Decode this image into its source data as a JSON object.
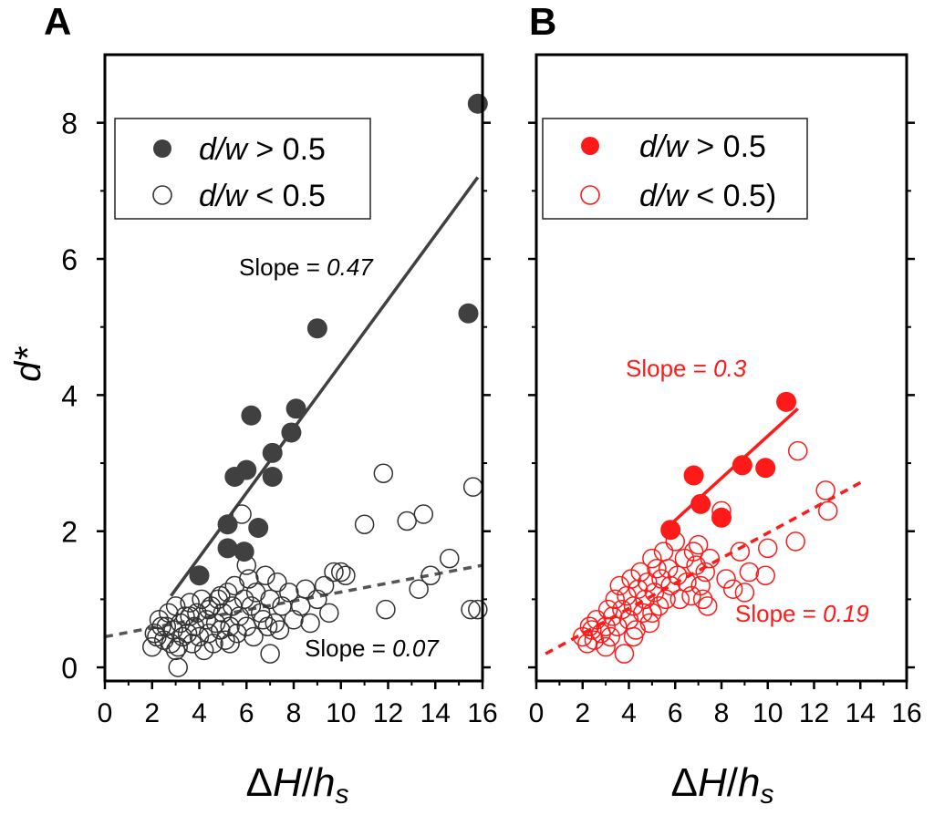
{
  "chart_data": [
    {
      "type": "scatter",
      "panel_label": "A",
      "xlabel": "ΔH/h_s",
      "ylabel": "d*",
      "xlim": [
        0,
        16
      ],
      "ylim": [
        -0.2,
        9.0
      ],
      "x_ticks": [
        0,
        2,
        4,
        6,
        8,
        10,
        12,
        14,
        16
      ],
      "y_ticks": [
        0,
        2,
        4,
        6,
        8
      ],
      "grid": false,
      "legend_position": "top-left",
      "colors": {
        "filled": "#404040",
        "open": "#333333"
      },
      "legend": [
        {
          "symbol": "filled",
          "italic": "d/w",
          "rest": " > 0.5"
        },
        {
          "symbol": "open",
          "italic": "d/w",
          "rest": " < 0.5"
        }
      ],
      "series": [
        {
          "name": "d/w > 0.5",
          "marker": "filled",
          "points": [
            [
              4.0,
              1.35
            ],
            [
              5.2,
              1.75
            ],
            [
              5.2,
              2.1
            ],
            [
              5.9,
              1.7
            ],
            [
              6.5,
              2.05
            ],
            [
              5.5,
              2.8
            ],
            [
              6.0,
              2.9
            ],
            [
              7.1,
              2.8
            ],
            [
              7.1,
              3.15
            ],
            [
              6.2,
              3.7
            ],
            [
              7.9,
              3.45
            ],
            [
              8.1,
              3.8
            ],
            [
              9.0,
              4.98
            ],
            [
              15.4,
              5.2
            ],
            [
              15.8,
              8.28
            ]
          ]
        },
        {
          "name": "d/w < 0.5",
          "marker": "open",
          "points": [
            [
              2.0,
              0.3
            ],
            [
              2.1,
              0.5
            ],
            [
              2.3,
              0.7
            ],
            [
              2.5,
              0.4
            ],
            [
              2.6,
              0.6
            ],
            [
              2.7,
              0.8
            ],
            [
              2.8,
              0.35
            ],
            [
              2.9,
              0.55
            ],
            [
              3.0,
              0.9
            ],
            [
              3.1,
              0.3
            ],
            [
              3.2,
              0.65
            ],
            [
              3.3,
              0.45
            ],
            [
              3.4,
              0.75
            ],
            [
              3.5,
              0.5
            ],
            [
              3.6,
              0.95
            ],
            [
              3.7,
              0.35
            ],
            [
              3.8,
              0.6
            ],
            [
              3.9,
              0.8
            ],
            [
              4.0,
              0.45
            ],
            [
              4.1,
              1.0
            ],
            [
              4.2,
              0.25
            ],
            [
              4.3,
              0.7
            ],
            [
              4.4,
              0.5
            ],
            [
              4.5,
              0.9
            ],
            [
              4.6,
              0.35
            ],
            [
              4.7,
              0.65
            ],
            [
              4.8,
              1.0
            ],
            [
              4.9,
              0.55
            ],
            [
              5.0,
              0.8
            ],
            [
              5.1,
              0.4
            ],
            [
              5.2,
              1.1
            ],
            [
              5.3,
              0.6
            ],
            [
              5.4,
              0.9
            ],
            [
              5.5,
              1.2
            ],
            [
              5.6,
              0.5
            ],
            [
              5.7,
              0.75
            ],
            [
              5.8,
              2.25
            ],
            [
              5.9,
              1.0
            ],
            [
              6.0,
              0.6
            ],
            [
              6.1,
              1.3
            ],
            [
              6.2,
              0.9
            ],
            [
              6.3,
              0.45
            ],
            [
              6.4,
              1.1
            ],
            [
              6.6,
              0.8
            ],
            [
              6.8,
              1.35
            ],
            [
              6.9,
              0.6
            ],
            [
              7.0,
              0.2
            ],
            [
              7.0,
              1.0
            ],
            [
              7.2,
              0.65
            ],
            [
              7.3,
              1.25
            ],
            [
              7.5,
              0.9
            ],
            [
              7.8,
              1.1
            ],
            [
              8.0,
              0.7
            ],
            [
              8.3,
              0.9
            ],
            [
              8.5,
              1.15
            ],
            [
              8.7,
              0.65
            ],
            [
              9.0,
              1.0
            ],
            [
              9.3,
              1.2
            ],
            [
              9.5,
              0.8
            ],
            [
              9.7,
              1.4
            ],
            [
              10.0,
              1.4
            ],
            [
              10.2,
              1.35
            ],
            [
              11.0,
              2.1
            ],
            [
              11.8,
              2.85
            ],
            [
              11.9,
              0.85
            ],
            [
              12.8,
              2.15
            ],
            [
              13.3,
              1.15
            ],
            [
              13.5,
              2.25
            ],
            [
              13.8,
              1.35
            ],
            [
              14.6,
              1.6
            ],
            [
              15.5,
              0.85
            ],
            [
              15.8,
              0.85
            ],
            [
              15.6,
              2.65
            ],
            [
              2.2,
              0.45
            ],
            [
              2.4,
              0.6
            ],
            [
              3.0,
              0.25
            ],
            [
              3.1,
              0.0
            ],
            [
              3.6,
              0.75
            ],
            [
              4.4,
              0.85
            ],
            [
              4.9,
              1.05
            ],
            [
              5.3,
              0.35
            ],
            [
              6.0,
              1.5
            ],
            [
              6.7,
              0.7
            ],
            [
              7.4,
              0.55
            ]
          ]
        }
      ],
      "fits": [
        {
          "label": "Slope = ",
          "value": "0.47",
          "style": "solid",
          "x": [
            2.8,
            15.8
          ],
          "y": [
            1.05,
            7.2
          ]
        },
        {
          "label": "Slope = ",
          "value": "0.07",
          "style": "dashed",
          "x": [
            0,
            16
          ],
          "y": [
            0.45,
            1.5
          ]
        }
      ]
    },
    {
      "type": "scatter",
      "panel_label": "B",
      "xlabel": "ΔH/h_s",
      "ylabel": "",
      "xlim": [
        0,
        16
      ],
      "ylim": [
        -0.2,
        9.0
      ],
      "x_ticks": [
        0,
        2,
        4,
        6,
        8,
        10,
        12,
        14,
        16
      ],
      "y_ticks": [
        0,
        2,
        4,
        6,
        8
      ],
      "grid": false,
      "legend_position": "top-left",
      "colors": {
        "filled": "#ff1a1a",
        "open": "#ff1a1a"
      },
      "legend": [
        {
          "symbol": "filled",
          "italic": "d/w",
          "rest": " > 0.5"
        },
        {
          "symbol": "open",
          "italic": "d/w",
          "rest": " < 0.5)"
        }
      ],
      "series": [
        {
          "name": "d/w > 0.5",
          "marker": "filled",
          "points": [
            [
              5.8,
              2.02
            ],
            [
              6.8,
              2.82
            ],
            [
              7.1,
              2.4
            ],
            [
              8.0,
              2.2
            ],
            [
              8.9,
              2.97
            ],
            [
              9.9,
              2.93
            ],
            [
              10.8,
              3.9
            ]
          ]
        },
        {
          "name": "d/w < 0.5",
          "marker": "open",
          "points": [
            [
              2.0,
              0.45
            ],
            [
              2.2,
              0.35
            ],
            [
              2.4,
              0.55
            ],
            [
              2.5,
              0.4
            ],
            [
              2.6,
              0.7
            ],
            [
              2.8,
              0.5
            ],
            [
              3.0,
              0.6
            ],
            [
              3.1,
              0.85
            ],
            [
              3.2,
              0.45
            ],
            [
              3.3,
              0.75
            ],
            [
              3.4,
              1.0
            ],
            [
              3.5,
              0.6
            ],
            [
              3.6,
              1.2
            ],
            [
              3.7,
              0.85
            ],
            [
              3.8,
              0.2
            ],
            [
              3.9,
              1.05
            ],
            [
              4.0,
              0.7
            ],
            [
              4.1,
              1.3
            ],
            [
              4.2,
              0.9
            ],
            [
              4.3,
              0.55
            ],
            [
              4.4,
              1.15
            ],
            [
              4.5,
              1.4
            ],
            [
              4.6,
              0.8
            ],
            [
              4.7,
              1.0
            ],
            [
              4.8,
              1.25
            ],
            [
              4.9,
              0.65
            ],
            [
              5.0,
              1.6
            ],
            [
              5.1,
              1.1
            ],
            [
              5.2,
              1.45
            ],
            [
              5.3,
              0.9
            ],
            [
              5.4,
              1.3
            ],
            [
              5.5,
              1.7
            ],
            [
              5.6,
              1.0
            ],
            [
              5.7,
              1.45
            ],
            [
              5.8,
              1.2
            ],
            [
              6.0,
              1.85
            ],
            [
              6.1,
              1.35
            ],
            [
              6.2,
              1.0
            ],
            [
              6.4,
              1.6
            ],
            [
              6.5,
              1.25
            ],
            [
              6.7,
              1.05
            ],
            [
              6.9,
              1.5
            ],
            [
              7.0,
              1.8
            ],
            [
              7.1,
              1.2
            ],
            [
              7.2,
              1.0
            ],
            [
              7.3,
              1.4
            ],
            [
              7.4,
              0.9
            ],
            [
              7.5,
              1.6
            ],
            [
              8.0,
              2.3
            ],
            [
              8.2,
              1.3
            ],
            [
              8.8,
              1.7
            ],
            [
              9.0,
              1.1
            ],
            [
              9.2,
              1.4
            ],
            [
              9.9,
              1.35
            ],
            [
              10.0,
              1.75
            ],
            [
              11.2,
              1.85
            ],
            [
              11.3,
              3.18
            ],
            [
              12.5,
              2.6
            ],
            [
              12.6,
              2.3
            ],
            [
              2.3,
              0.6
            ],
            [
              3.0,
              0.3
            ],
            [
              4.2,
              0.45
            ],
            [
              5.0,
              0.8
            ],
            [
              6.8,
              1.7
            ],
            [
              8.5,
              1.15
            ]
          ]
        }
      ],
      "fits": [
        {
          "label": "Slope = ",
          "value": "0.3",
          "style": "solid",
          "x": [
            5.8,
            11.3
          ],
          "y": [
            2.1,
            3.8
          ]
        },
        {
          "label": "Slope = ",
          "value": "0.19",
          "style": "dashed",
          "x": [
            0.4,
            14.2
          ],
          "y": [
            0.2,
            2.75
          ]
        }
      ]
    }
  ]
}
